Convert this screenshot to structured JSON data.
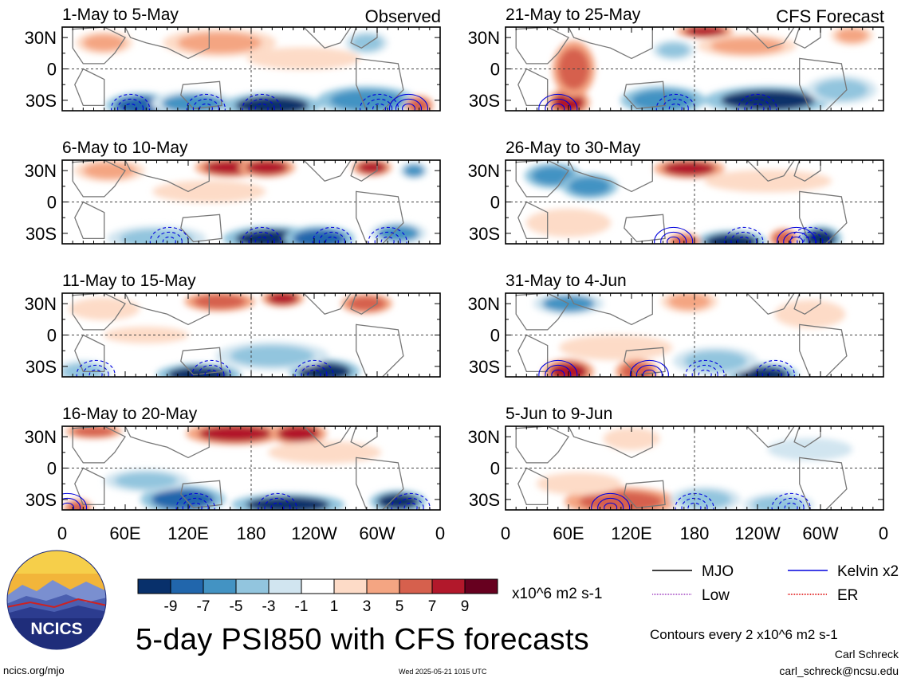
{
  "figure": {
    "title": "5-day PSI850 with CFS forecasts",
    "observed_label": "Observed",
    "forecast_label": "CFS Forecast",
    "colorbar_unit": "x10^6 m2 s-1",
    "contour_note": "Contours every 2 x10^6 m2 s-1",
    "source_url": "ncics.org/mjo",
    "timestamp": "Wed 2025-05-21 1015 UTC",
    "author": "Carl Schreck",
    "email": "carl_schreck@ncsu.edu",
    "logo_text": "NCICS",
    "colors": {
      "mjo": "#000000",
      "kelvin": "#0000dd",
      "low": "#a040c0",
      "er": "#dd0000",
      "negative_dark": "#08306b",
      "positive_dark": "#67000d"
    }
  },
  "legend": [
    {
      "label": "MJO",
      "color": "#000000"
    },
    {
      "label": "Kelvin x2",
      "color": "#0000dd"
    },
    {
      "label": "Low",
      "color": "#a040c0"
    },
    {
      "label": "ER",
      "color": "#dd0000"
    }
  ],
  "chart_data": {
    "type": "heatmap",
    "variable": "PSI850 anomaly",
    "x_ticks": [
      "0",
      "60E",
      "120E",
      "180",
      "120W",
      "60W",
      "0"
    ],
    "y_ticks": [
      "30N",
      "0",
      "30S"
    ],
    "colorbar": {
      "levels": [
        -9,
        -7,
        -5,
        -3,
        -1,
        1,
        3,
        5,
        7,
        9
      ],
      "colors": [
        "#08306b",
        "#2166ac",
        "#4393c3",
        "#92c5de",
        "#d1e5f0",
        "#ffffff",
        "#fddbc7",
        "#f4a582",
        "#d6604d",
        "#b2182b",
        "#67001f"
      ]
    },
    "panels": [
      {
        "title": "1-May to 5-May",
        "column": "left",
        "row": 0,
        "features": [
          {
            "lon": 75,
            "lat": -35,
            "value": -8,
            "rx": 25,
            "ry": 9
          },
          {
            "lon": 125,
            "lat": -33,
            "value": -5,
            "rx": 30,
            "ry": 9
          },
          {
            "lon": 200,
            "lat": -35,
            "value": -9,
            "rx": 35,
            "ry": 9
          },
          {
            "lon": 290,
            "lat": -30,
            "value": -6,
            "rx": 35,
            "ry": 10
          },
          {
            "lon": 340,
            "lat": -35,
            "value": 6,
            "rx": 10,
            "ry": 7
          },
          {
            "lon": 150,
            "lat": 25,
            "value": 4,
            "rx": 40,
            "ry": 10
          },
          {
            "lon": 290,
            "lat": 25,
            "value": -4,
            "rx": 15,
            "ry": 8
          },
          {
            "lon": 40,
            "lat": 25,
            "value": 4,
            "rx": 20,
            "ry": 8
          },
          {
            "lon": 230,
            "lat": 10,
            "value": 2,
            "rx": 40,
            "ry": 8
          }
        ]
      },
      {
        "title": "6-May to 10-May",
        "column": "left",
        "row": 1,
        "features": [
          {
            "lon": 160,
            "lat": 33,
            "value": 8,
            "rx": 25,
            "ry": 7
          },
          {
            "lon": 195,
            "lat": 33,
            "value": 8,
            "rx": 20,
            "ry": 7
          },
          {
            "lon": 295,
            "lat": 33,
            "value": 8,
            "rx": 14,
            "ry": 6
          },
          {
            "lon": 335,
            "lat": 30,
            "value": -5,
            "rx": 10,
            "ry": 6
          },
          {
            "lon": 45,
            "lat": 30,
            "value": 4,
            "rx": 25,
            "ry": 8
          },
          {
            "lon": 90,
            "lat": -35,
            "value": -4,
            "rx": 35,
            "ry": 9
          },
          {
            "lon": 200,
            "lat": -35,
            "value": -9,
            "rx": 35,
            "ry": 9
          },
          {
            "lon": 245,
            "lat": -35,
            "value": -8,
            "rx": 25,
            "ry": 9
          },
          {
            "lon": 320,
            "lat": -30,
            "value": -5,
            "rx": 20,
            "ry": 8
          },
          {
            "lon": 140,
            "lat": 10,
            "value": 2,
            "rx": 40,
            "ry": 8
          }
        ]
      },
      {
        "title": "11-May to 15-May",
        "column": "left",
        "row": 2,
        "features": [
          {
            "lon": 150,
            "lat": 32,
            "value": 7,
            "rx": 25,
            "ry": 7
          },
          {
            "lon": 210,
            "lat": 35,
            "value": 8,
            "rx": 15,
            "ry": 6
          },
          {
            "lon": 290,
            "lat": 30,
            "value": 7,
            "rx": 18,
            "ry": 7
          },
          {
            "lon": 40,
            "lat": 25,
            "value": 3,
            "rx": 25,
            "ry": 8
          },
          {
            "lon": 80,
            "lat": 0,
            "value": 3,
            "rx": 30,
            "ry": 6
          },
          {
            "lon": 130,
            "lat": -38,
            "value": -9,
            "rx": 30,
            "ry": 8
          },
          {
            "lon": 250,
            "lat": -35,
            "value": -9,
            "rx": 25,
            "ry": 9
          },
          {
            "lon": 20,
            "lat": -35,
            "value": -4,
            "rx": 20,
            "ry": 8
          },
          {
            "lon": 200,
            "lat": -20,
            "value": -3,
            "rx": 40,
            "ry": 10
          }
        ]
      },
      {
        "title": "16-May to 20-May",
        "column": "left",
        "row": 3,
        "features": [
          {
            "lon": 165,
            "lat": 33,
            "value": 9,
            "rx": 35,
            "ry": 8
          },
          {
            "lon": 225,
            "lat": 33,
            "value": 9,
            "rx": 20,
            "ry": 8
          },
          {
            "lon": 30,
            "lat": 35,
            "value": 7,
            "rx": 20,
            "ry": 5
          },
          {
            "lon": 115,
            "lat": -30,
            "value": -8,
            "rx": 30,
            "ry": 10
          },
          {
            "lon": 215,
            "lat": -35,
            "value": -9,
            "rx": 40,
            "ry": 8
          },
          {
            "lon": 320,
            "lat": -32,
            "value": -9,
            "rx": 20,
            "ry": 8
          },
          {
            "lon": 15,
            "lat": -38,
            "value": 6,
            "rx": 10,
            "ry": 6
          },
          {
            "lon": 80,
            "lat": -12,
            "value": -3,
            "rx": 30,
            "ry": 8
          },
          {
            "lon": 250,
            "lat": 15,
            "value": 3,
            "rx": 40,
            "ry": 8
          }
        ]
      },
      {
        "title": "21-May to 25-May",
        "column": "right",
        "row": 0,
        "features": [
          {
            "lon": 60,
            "lat": -32,
            "value": 9,
            "rx": 15,
            "ry": 10
          },
          {
            "lon": 65,
            "lat": 0,
            "value": 6,
            "rx": 15,
            "ry": 20
          },
          {
            "lon": 190,
            "lat": 36,
            "value": 9,
            "rx": 20,
            "ry": 5
          },
          {
            "lon": 150,
            "lat": -30,
            "value": -6,
            "rx": 30,
            "ry": 10
          },
          {
            "lon": 250,
            "lat": -30,
            "value": -9,
            "rx": 45,
            "ry": 10
          },
          {
            "lon": 320,
            "lat": -20,
            "value": -3,
            "rx": 25,
            "ry": 10
          },
          {
            "lon": 230,
            "lat": 22,
            "value": 4,
            "rx": 35,
            "ry": 8
          },
          {
            "lon": 160,
            "lat": 18,
            "value": -4,
            "rx": 15,
            "ry": 7
          },
          {
            "lon": 330,
            "lat": 32,
            "value": 4,
            "rx": 15,
            "ry": 7
          }
        ]
      },
      {
        "title": "26-May to 30-May",
        "column": "right",
        "row": 1,
        "features": [
          {
            "lon": 175,
            "lat": 32,
            "value": 8,
            "rx": 25,
            "ry": 7
          },
          {
            "lon": 45,
            "lat": 25,
            "value": -6,
            "rx": 20,
            "ry": 9
          },
          {
            "lon": 80,
            "lat": 15,
            "value": -6,
            "rx": 20,
            "ry": 9
          },
          {
            "lon": 215,
            "lat": -38,
            "value": -9,
            "rx": 25,
            "ry": 8
          },
          {
            "lon": 300,
            "lat": -35,
            "value": -9,
            "rx": 15,
            "ry": 9
          },
          {
            "lon": 265,
            "lat": -35,
            "value": 6,
            "rx": 10,
            "ry": 7
          },
          {
            "lon": 170,
            "lat": -38,
            "value": 6,
            "rx": 12,
            "ry": 6
          },
          {
            "lon": 60,
            "lat": -20,
            "value": 3,
            "rx": 30,
            "ry": 10
          },
          {
            "lon": 250,
            "lat": 20,
            "value": 3,
            "rx": 45,
            "ry": 8
          }
        ]
      },
      {
        "title": "31-May to 4-Jun",
        "column": "right",
        "row": 2,
        "features": [
          {
            "lon": 60,
            "lat": -35,
            "value": 9,
            "rx": 18,
            "ry": 9
          },
          {
            "lon": 125,
            "lat": -35,
            "value": 7,
            "rx": 15,
            "ry": 9
          },
          {
            "lon": 105,
            "lat": -12,
            "value": 3,
            "rx": 40,
            "ry": 9
          },
          {
            "lon": 245,
            "lat": -38,
            "value": -9,
            "rx": 25,
            "ry": 8
          },
          {
            "lon": 200,
            "lat": -25,
            "value": -4,
            "rx": 30,
            "ry": 10
          },
          {
            "lon": 60,
            "lat": 30,
            "value": -5,
            "rx": 25,
            "ry": 8
          },
          {
            "lon": 175,
            "lat": 32,
            "value": 5,
            "rx": 20,
            "ry": 8
          },
          {
            "lon": 290,
            "lat": 20,
            "value": 3,
            "rx": 25,
            "ry": 10
          }
        ]
      },
      {
        "title": "5-Jun to 9-Jun",
        "column": "right",
        "row": 3,
        "features": [
          {
            "lon": 110,
            "lat": -32,
            "value": 6,
            "rx": 40,
            "ry": 10
          },
          {
            "lon": 70,
            "lat": -15,
            "value": 3,
            "rx": 30,
            "ry": 8
          },
          {
            "lon": 190,
            "lat": -30,
            "value": -3,
            "rx": 25,
            "ry": 9
          },
          {
            "lon": 260,
            "lat": -35,
            "value": -3,
            "rx": 25,
            "ry": 8
          },
          {
            "lon": 120,
            "lat": 28,
            "value": 3,
            "rx": 20,
            "ry": 8
          },
          {
            "lon": 290,
            "lat": 18,
            "value": -2,
            "rx": 30,
            "ry": 8
          }
        ]
      }
    ],
    "lon_range": [
      0,
      360
    ],
    "lat_range": [
      -40,
      40
    ],
    "grid": true
  }
}
